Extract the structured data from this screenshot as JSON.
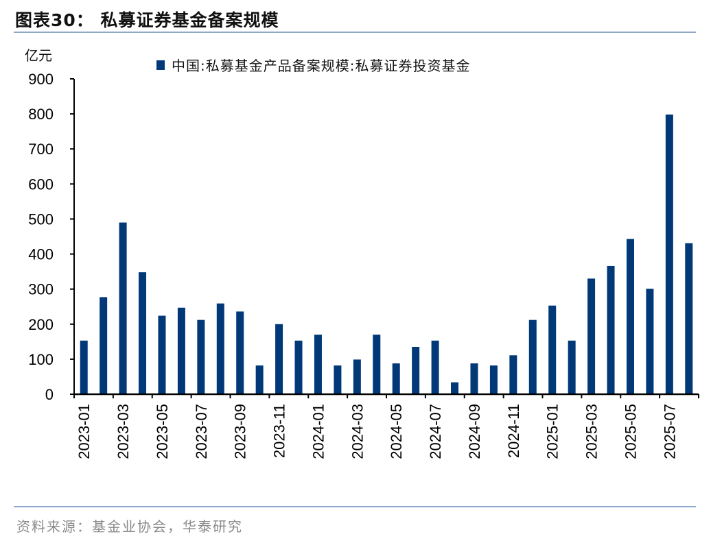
{
  "header": {
    "title": "图表30：  私募证券基金备案规模"
  },
  "footer": {
    "source": "资料来源：基金业协会，华泰研究"
  },
  "chart_data": {
    "type": "bar",
    "title": "",
    "unit_label": "亿元",
    "ylim": [
      0,
      900
    ],
    "yticks": [
      0,
      100,
      200,
      300,
      400,
      500,
      600,
      700,
      800,
      900
    ],
    "grid": false,
    "legend_position": "top",
    "bar_color": "#003878",
    "categories": [
      "2023-01",
      "2023-02",
      "2023-03",
      "2023-04",
      "2023-05",
      "2023-06",
      "2023-07",
      "2023-08",
      "2023-09",
      "2023-10",
      "2023-11",
      "2023-12",
      "2024-01",
      "2024-02",
      "2024-03",
      "2024-04",
      "2024-05",
      "2024-06",
      "2024-07",
      "2024-08",
      "2024-09",
      "2024-10",
      "2024-11",
      "2024-12",
      "2025-01",
      "2025-02",
      "2025-03",
      "2025-04",
      "2025-05",
      "2025-06",
      "2025-07",
      "2025-08"
    ],
    "xtick_labels": [
      "2023-01",
      "2023-03",
      "2023-05",
      "2023-07",
      "2023-09",
      "2023-11",
      "2024-01",
      "2024-03",
      "2024-05",
      "2024-07",
      "2024-09",
      "2024-11",
      "2025-01",
      "2025-03",
      "2025-05",
      "2025-07"
    ],
    "series": [
      {
        "name": "中国:私募基金产品备案规模:私募证券投资基金",
        "values": [
          153,
          277,
          490,
          348,
          224,
          247,
          212,
          259,
          236,
          82,
          200,
          153,
          170,
          82,
          99,
          170,
          88,
          135,
          153,
          34,
          88,
          82,
          111,
          212,
          253,
          153,
          330,
          366,
          443,
          301,
          798,
          431
        ]
      }
    ]
  }
}
